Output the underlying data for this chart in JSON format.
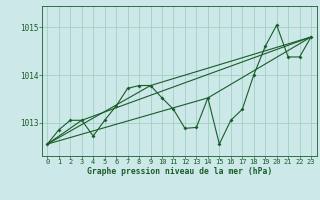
{
  "title": "Graphe pression niveau de la mer (hPa)",
  "background_color": "#cce8e8",
  "grid_color": "#99ccbb",
  "line_color": "#1a5c2a",
  "xlim": [
    -0.5,
    23.5
  ],
  "ylim": [
    1012.3,
    1015.45
  ],
  "yticks": [
    1013,
    1014,
    1015
  ],
  "xticks": [
    0,
    1,
    2,
    3,
    4,
    5,
    6,
    7,
    8,
    9,
    10,
    11,
    12,
    13,
    14,
    15,
    16,
    17,
    18,
    19,
    20,
    21,
    22,
    23
  ],
  "series": [
    [
      0,
      1012.55
    ],
    [
      1,
      1012.85
    ],
    [
      2,
      1013.05
    ],
    [
      3,
      1013.05
    ],
    [
      4,
      1012.72
    ],
    [
      5,
      1013.05
    ],
    [
      6,
      1013.35
    ],
    [
      7,
      1013.72
    ],
    [
      8,
      1013.78
    ],
    [
      9,
      1013.78
    ],
    [
      10,
      1013.52
    ],
    [
      11,
      1013.28
    ],
    [
      12,
      1012.88
    ],
    [
      13,
      1012.9
    ],
    [
      14,
      1013.52
    ],
    [
      15,
      1012.55
    ],
    [
      16,
      1013.05
    ],
    [
      17,
      1013.28
    ],
    [
      18,
      1014.0
    ],
    [
      19,
      1014.6
    ],
    [
      20,
      1015.05
    ],
    [
      21,
      1014.38
    ],
    [
      22,
      1014.38
    ],
    [
      23,
      1014.8
    ]
  ],
  "series2": [
    [
      0,
      1012.55
    ],
    [
      3,
      1013.05
    ],
    [
      23,
      1014.8
    ]
  ],
  "series3": [
    [
      0,
      1012.55
    ],
    [
      9,
      1013.78
    ],
    [
      23,
      1014.8
    ]
  ],
  "series4": [
    [
      0,
      1012.55
    ],
    [
      14,
      1013.52
    ],
    [
      23,
      1014.8
    ]
  ]
}
